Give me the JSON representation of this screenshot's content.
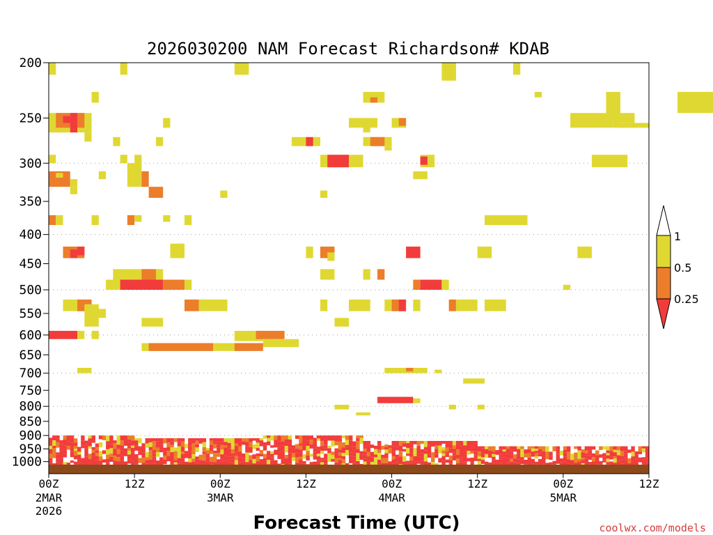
{
  "chart_data": {
    "type": "heatmap",
    "title": "2026030200 NAM Forecast Richardson# KDAB",
    "xlabel": "Forecast Time (UTC)",
    "ylabel": "",
    "credit": "coolwx.com/models",
    "y_axis": {
      "unit": "hPa",
      "range": [
        1050,
        200
      ],
      "tick_labels": [
        "200",
        "250",
        "300",
        "350",
        "400",
        "450",
        "500",
        "550",
        "600",
        "650",
        "700",
        "750",
        "800",
        "850",
        "900",
        "950",
        "1000"
      ],
      "ticks": [
        200,
        250,
        300,
        350,
        400,
        450,
        500,
        550,
        600,
        650,
        700,
        750,
        800,
        850,
        900,
        950,
        1000
      ],
      "dotted_gridlines_at": [
        300,
        400,
        500,
        600,
        700,
        800,
        900
      ]
    },
    "x_axis": {
      "unit": "forecast hour",
      "range": [
        0,
        84
      ],
      "ticks": [
        0,
        12,
        24,
        36,
        48,
        60,
        72,
        84
      ],
      "tick_labels": [
        {
          "hour": "00Z",
          "date": "2MAR",
          "year": "2026"
        },
        {
          "hour": "12Z",
          "date": "",
          "year": ""
        },
        {
          "hour": "00Z",
          "date": "3MAR",
          "year": ""
        },
        {
          "hour": "12Z",
          "date": "",
          "year": ""
        },
        {
          "hour": "00Z",
          "date": "4MAR",
          "year": ""
        },
        {
          "hour": "12Z",
          "date": "",
          "year": ""
        },
        {
          "hour": "00Z",
          "date": "5MAR",
          "year": ""
        },
        {
          "hour": "12Z",
          "date": "",
          "year": ""
        }
      ]
    },
    "legend": {
      "placement": "right",
      "labels": [
        "1",
        "0.5",
        "0.25"
      ],
      "classes": [
        {
          "name": "0.5-1",
          "color": "#e0d832"
        },
        {
          "name": "0.25-0.5",
          "color": "#ec7d2a"
        },
        {
          "name": "<0.25",
          "color": "#f23c3c"
        }
      ],
      "top_arrow_color": "#ffffff"
    },
    "ground_color": "#8c4a1c",
    "cells": [
      [
        0,
        1,
        200,
        210,
        "y"
      ],
      [
        10,
        11,
        200,
        210,
        "y"
      ],
      [
        26,
        28,
        200,
        210,
        "y"
      ],
      [
        55,
        57,
        200,
        215,
        "y"
      ],
      [
        65,
        66,
        200,
        210,
        "y"
      ],
      [
        6,
        7,
        225,
        235,
        "y"
      ],
      [
        44,
        47,
        225,
        235,
        "y"
      ],
      [
        45,
        46,
        230,
        235,
        "o"
      ],
      [
        68,
        69,
        225,
        230,
        "y"
      ],
      [
        78,
        80,
        225,
        255,
        "y"
      ],
      [
        79,
        82,
        245,
        255,
        "y"
      ],
      [
        79,
        84,
        255,
        260,
        "y"
      ],
      [
        80,
        82,
        255,
        260,
        "y"
      ],
      [
        73,
        79,
        245,
        260,
        "y"
      ],
      [
        88,
        100,
        225,
        245,
        "y"
      ],
      [
        0,
        6,
        245,
        265,
        "y"
      ],
      [
        1,
        5,
        245,
        260,
        "o"
      ],
      [
        3,
        4,
        245,
        265,
        "r"
      ],
      [
        2,
        3,
        248,
        255,
        "r"
      ],
      [
        16,
        17,
        250,
        260,
        "y"
      ],
      [
        42,
        46,
        250,
        260,
        "y"
      ],
      [
        44,
        45,
        255,
        265,
        "y"
      ],
      [
        48,
        50,
        250,
        260,
        "y"
      ],
      [
        49,
        50,
        250,
        258,
        "o"
      ],
      [
        5,
        6,
        265,
        275,
        "y"
      ],
      [
        9,
        10,
        270,
        280,
        "y"
      ],
      [
        15,
        16,
        270,
        280,
        "y"
      ],
      [
        34,
        38,
        270,
        280,
        "y"
      ],
      [
        36,
        37,
        270,
        280,
        "r"
      ],
      [
        44,
        48,
        270,
        280,
        "y"
      ],
      [
        45,
        47,
        270,
        280,
        "o"
      ],
      [
        47,
        48,
        280,
        285,
        "y"
      ],
      [
        0,
        1,
        290,
        300,
        "y"
      ],
      [
        10,
        11,
        290,
        300,
        "y"
      ],
      [
        12,
        13,
        290,
        300,
        "y"
      ],
      [
        38,
        44,
        290,
        305,
        "y"
      ],
      [
        39,
        42,
        290,
        305,
        "r"
      ],
      [
        52,
        54,
        290,
        305,
        "y"
      ],
      [
        52,
        53,
        292,
        302,
        "r"
      ],
      [
        76,
        81,
        290,
        305,
        "y"
      ],
      [
        0,
        3,
        310,
        330,
        "o"
      ],
      [
        1,
        2,
        312,
        318,
        "y"
      ],
      [
        3,
        4,
        320,
        330,
        "y"
      ],
      [
        7,
        8,
        310,
        320,
        "y"
      ],
      [
        11,
        13,
        300,
        330,
        "y"
      ],
      [
        13,
        14,
        310,
        330,
        "o"
      ],
      [
        51,
        53,
        310,
        320,
        "y"
      ],
      [
        3,
        4,
        330,
        340,
        "y"
      ],
      [
        14,
        16,
        330,
        345,
        "o"
      ],
      [
        24,
        25,
        335,
        345,
        "y"
      ],
      [
        38,
        39,
        335,
        345,
        "y"
      ],
      [
        0,
        1,
        370,
        385,
        "o"
      ],
      [
        1,
        2,
        370,
        385,
        "y"
      ],
      [
        6,
        7,
        370,
        385,
        "y"
      ],
      [
        11,
        12,
        370,
        385,
        "o"
      ],
      [
        12,
        13,
        370,
        380,
        "y"
      ],
      [
        16,
        17,
        370,
        380,
        "y"
      ],
      [
        19,
        20,
        370,
        385,
        "y"
      ],
      [
        61,
        67,
        370,
        385,
        "y"
      ],
      [
        2,
        5,
        420,
        440,
        "o"
      ],
      [
        4,
        5,
        420,
        435,
        "r"
      ],
      [
        3,
        4,
        425,
        440,
        "r"
      ],
      [
        17,
        19,
        415,
        440,
        "y"
      ],
      [
        36,
        37,
        420,
        440,
        "y"
      ],
      [
        38,
        40,
        420,
        440,
        "o"
      ],
      [
        39,
        40,
        430,
        445,
        "y"
      ],
      [
        50,
        52,
        420,
        440,
        "r"
      ],
      [
        60,
        62,
        420,
        440,
        "y"
      ],
      [
        74,
        76,
        420,
        440,
        "y"
      ],
      [
        9,
        16,
        460,
        500,
        "y"
      ],
      [
        13,
        15,
        460,
        480,
        "o"
      ],
      [
        8,
        10,
        480,
        500,
        "y"
      ],
      [
        10,
        16,
        480,
        500,
        "r"
      ],
      [
        16,
        19,
        480,
        500,
        "o"
      ],
      [
        19,
        20,
        480,
        500,
        "y"
      ],
      [
        38,
        40,
        460,
        480,
        "y"
      ],
      [
        44,
        45,
        460,
        480,
        "y"
      ],
      [
        46,
        47,
        460,
        480,
        "o"
      ],
      [
        51,
        52,
        480,
        500,
        "o"
      ],
      [
        52,
        55,
        480,
        500,
        "r"
      ],
      [
        55,
        56,
        480,
        500,
        "y"
      ],
      [
        72,
        73,
        490,
        500,
        "y"
      ],
      [
        2,
        5,
        520,
        545,
        "y"
      ],
      [
        4,
        6,
        520,
        545,
        "o"
      ],
      [
        5,
        7,
        530,
        580,
        "y"
      ],
      [
        6,
        8,
        540,
        560,
        "y"
      ],
      [
        19,
        21,
        520,
        545,
        "o"
      ],
      [
        21,
        25,
        520,
        545,
        "y"
      ],
      [
        38,
        39,
        520,
        545,
        "y"
      ],
      [
        42,
        45,
        520,
        545,
        "y"
      ],
      [
        47,
        48,
        520,
        545,
        "y"
      ],
      [
        48,
        50,
        520,
        545,
        "o"
      ],
      [
        49,
        50,
        520,
        545,
        "r"
      ],
      [
        51,
        52,
        520,
        545,
        "y"
      ],
      [
        56,
        57,
        520,
        545,
        "o"
      ],
      [
        57,
        60,
        520,
        545,
        "y"
      ],
      [
        61,
        64,
        520,
        545,
        "y"
      ],
      [
        13,
        16,
        560,
        580,
        "y"
      ],
      [
        40,
        42,
        560,
        580,
        "y"
      ],
      [
        0,
        4,
        590,
        610,
        "r"
      ],
      [
        4,
        5,
        590,
        610,
        "y"
      ],
      [
        6,
        7,
        590,
        610,
        "y"
      ],
      [
        26,
        30,
        590,
        615,
        "y"
      ],
      [
        29,
        33,
        590,
        610,
        "o"
      ],
      [
        30,
        35,
        610,
        630,
        "y"
      ],
      [
        13,
        28,
        620,
        640,
        "y"
      ],
      [
        14,
        23,
        620,
        640,
        "o"
      ],
      [
        26,
        30,
        620,
        640,
        "o"
      ],
      [
        4,
        6,
        685,
        700,
        "y"
      ],
      [
        47,
        53,
        685,
        700,
        "y"
      ],
      [
        50,
        51,
        685,
        695,
        "o"
      ],
      [
        54,
        55,
        690,
        700,
        "y"
      ],
      [
        58,
        61,
        715,
        730,
        "y"
      ],
      [
        46,
        51,
        770,
        790,
        "r"
      ],
      [
        51,
        52,
        775,
        790,
        "y"
      ],
      [
        40,
        42,
        795,
        810,
        "y"
      ],
      [
        43,
        45,
        820,
        830,
        "y"
      ],
      [
        56,
        57,
        795,
        810,
        "y"
      ],
      [
        60,
        61,
        795,
        810,
        "y"
      ]
    ]
  }
}
